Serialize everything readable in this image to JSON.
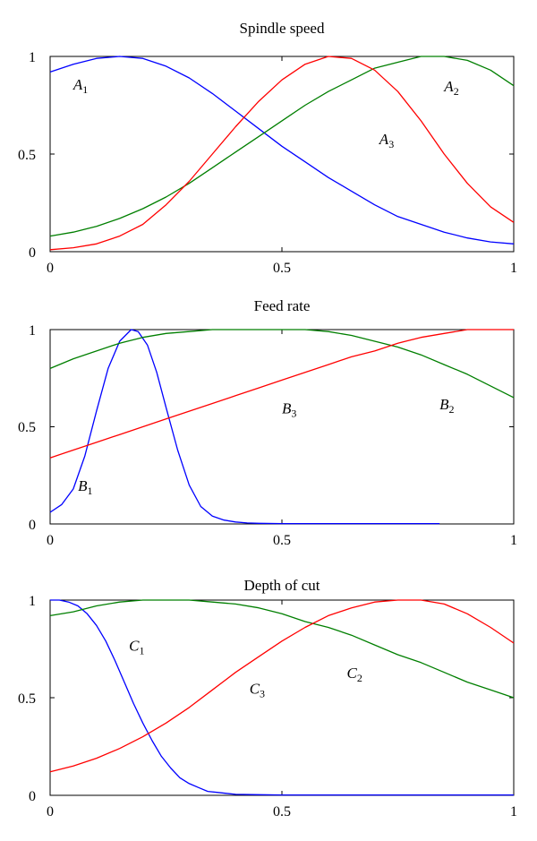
{
  "chart_data": [
    {
      "type": "line",
      "title": "Spindle speed",
      "xlim": [
        0,
        1
      ],
      "ylim": [
        0,
        1
      ],
      "xticks": [
        "0",
        "0.5",
        "1"
      ],
      "yticks": [
        "0",
        "0.5",
        "1"
      ],
      "series": [
        {
          "name": "A1",
          "letter": "A",
          "sub": "1",
          "color": "#0000ff",
          "x": [
            0,
            0.05,
            0.1,
            0.15,
            0.2,
            0.25,
            0.3,
            0.35,
            0.4,
            0.45,
            0.5,
            0.55,
            0.6,
            0.65,
            0.7,
            0.75,
            0.8,
            0.85,
            0.9,
            0.95,
            1.0
          ],
          "y": [
            0.92,
            0.96,
            0.99,
            1.0,
            0.99,
            0.95,
            0.89,
            0.81,
            0.72,
            0.63,
            0.54,
            0.46,
            0.38,
            0.31,
            0.24,
            0.18,
            0.14,
            0.1,
            0.07,
            0.05,
            0.04
          ],
          "label_at": [
            0.05,
            0.83
          ]
        },
        {
          "name": "A2",
          "letter": "A",
          "sub": "2",
          "color": "#007f00",
          "x": [
            0,
            0.05,
            0.1,
            0.15,
            0.2,
            0.25,
            0.3,
            0.35,
            0.4,
            0.45,
            0.5,
            0.55,
            0.6,
            0.65,
            0.7,
            0.75,
            0.8,
            0.85,
            0.9,
            0.95,
            1.0
          ],
          "y": [
            0.08,
            0.1,
            0.13,
            0.17,
            0.22,
            0.28,
            0.35,
            0.43,
            0.51,
            0.59,
            0.67,
            0.75,
            0.82,
            0.88,
            0.94,
            0.97,
            1.0,
            1.0,
            0.98,
            0.93,
            0.85
          ],
          "label_at": [
            0.85,
            0.82
          ]
        },
        {
          "name": "A3",
          "letter": "A",
          "sub": "3",
          "color": "#ff0000",
          "x": [
            0,
            0.05,
            0.1,
            0.15,
            0.2,
            0.25,
            0.3,
            0.35,
            0.4,
            0.45,
            0.5,
            0.55,
            0.6,
            0.65,
            0.7,
            0.75,
            0.8,
            0.85,
            0.9,
            0.95,
            1.0
          ],
          "y": [
            0.01,
            0.02,
            0.04,
            0.08,
            0.14,
            0.24,
            0.36,
            0.5,
            0.64,
            0.77,
            0.88,
            0.96,
            1.0,
            0.99,
            0.93,
            0.82,
            0.67,
            0.5,
            0.35,
            0.23,
            0.15
          ],
          "label_at": [
            0.71,
            0.55
          ]
        }
      ]
    },
    {
      "type": "line",
      "title": "Feed rate",
      "xlim": [
        0,
        1
      ],
      "ylim": [
        0,
        1
      ],
      "xticks": [
        "0",
        "0.5",
        "1"
      ],
      "yticks": [
        "0",
        "0.5",
        "1"
      ],
      "series": [
        {
          "name": "B1",
          "letter": "B",
          "sub": "1",
          "color": "#0000ff",
          "x": [
            0,
            0.025,
            0.05,
            0.075,
            0.1,
            0.125,
            0.15,
            0.175,
            0.19,
            0.21,
            0.23,
            0.25,
            0.275,
            0.3,
            0.325,
            0.35,
            0.375,
            0.4,
            0.425,
            0.45,
            0.5,
            0.6,
            0.7,
            0.8,
            0.84
          ],
          "y": [
            0.06,
            0.1,
            0.18,
            0.35,
            0.58,
            0.8,
            0.94,
            1.0,
            0.99,
            0.92,
            0.78,
            0.6,
            0.38,
            0.2,
            0.09,
            0.04,
            0.02,
            0.01,
            0.005,
            0.003,
            0.002,
            0.002,
            0.002,
            0.002,
            0.002
          ],
          "label_at": [
            0.06,
            0.17
          ]
        },
        {
          "name": "B2",
          "letter": "B",
          "sub": "2",
          "color": "#007f00",
          "x": [
            0,
            0.05,
            0.1,
            0.15,
            0.2,
            0.25,
            0.3,
            0.35,
            0.4,
            0.45,
            0.5,
            0.55,
            0.6,
            0.65,
            0.7,
            0.75,
            0.8,
            0.85,
            0.9,
            0.95,
            1.0
          ],
          "y": [
            0.8,
            0.85,
            0.89,
            0.93,
            0.96,
            0.98,
            0.99,
            1.0,
            1.0,
            1.0,
            1.0,
            1.0,
            0.99,
            0.97,
            0.94,
            0.91,
            0.87,
            0.82,
            0.77,
            0.71,
            0.65
          ],
          "label_at": [
            0.84,
            0.59
          ]
        },
        {
          "name": "B3",
          "letter": "B",
          "sub": "3",
          "color": "#ff0000",
          "x": [
            0,
            0.05,
            0.1,
            0.15,
            0.2,
            0.25,
            0.3,
            0.35,
            0.4,
            0.45,
            0.5,
            0.55,
            0.6,
            0.65,
            0.7,
            0.75,
            0.8,
            0.85,
            0.9,
            0.95,
            1.0
          ],
          "y": [
            0.34,
            0.38,
            0.42,
            0.46,
            0.5,
            0.54,
            0.58,
            0.62,
            0.66,
            0.7,
            0.74,
            0.78,
            0.82,
            0.86,
            0.89,
            0.93,
            0.96,
            0.98,
            1.0,
            1.0,
            1.0
          ],
          "label_at": [
            0.5,
            0.57
          ]
        }
      ]
    },
    {
      "type": "line",
      "title": "Depth of cut",
      "xlim": [
        0,
        1
      ],
      "ylim": [
        0,
        1
      ],
      "xticks": [
        "0",
        "0.5",
        "1"
      ],
      "yticks": [
        "0",
        "0.5",
        "1"
      ],
      "series": [
        {
          "name": "C1",
          "letter": "C",
          "sub": "1",
          "color": "#0000ff",
          "x": [
            0,
            0.02,
            0.04,
            0.06,
            0.08,
            0.1,
            0.12,
            0.14,
            0.16,
            0.18,
            0.2,
            0.22,
            0.24,
            0.26,
            0.28,
            0.3,
            0.32,
            0.34,
            0.36,
            0.38,
            0.4,
            0.45,
            0.5,
            0.6,
            0.7,
            0.8,
            0.9,
            1.0
          ],
          "y": [
            1.0,
            1.0,
            0.99,
            0.97,
            0.93,
            0.87,
            0.79,
            0.69,
            0.58,
            0.47,
            0.37,
            0.28,
            0.2,
            0.14,
            0.09,
            0.06,
            0.04,
            0.02,
            0.015,
            0.01,
            0.005,
            0.003,
            0.002,
            0.002,
            0.002,
            0.002,
            0.002,
            0.002
          ],
          "label_at": [
            0.17,
            0.74
          ]
        },
        {
          "name": "C2",
          "letter": "C",
          "sub": "2",
          "color": "#007f00",
          "x": [
            0,
            0.05,
            0.1,
            0.15,
            0.2,
            0.25,
            0.3,
            0.35,
            0.4,
            0.45,
            0.5,
            0.55,
            0.6,
            0.65,
            0.7,
            0.75,
            0.8,
            0.85,
            0.9,
            0.95,
            1.0
          ],
          "y": [
            0.92,
            0.94,
            0.97,
            0.99,
            1.0,
            1.0,
            1.0,
            0.99,
            0.98,
            0.96,
            0.93,
            0.89,
            0.86,
            0.82,
            0.77,
            0.72,
            0.68,
            0.63,
            0.58,
            0.54,
            0.5
          ],
          "label_at": [
            0.64,
            0.6
          ]
        },
        {
          "name": "C3",
          "letter": "C",
          "sub": "3",
          "color": "#ff0000",
          "x": [
            0,
            0.05,
            0.1,
            0.15,
            0.2,
            0.25,
            0.3,
            0.35,
            0.4,
            0.45,
            0.5,
            0.55,
            0.6,
            0.65,
            0.7,
            0.75,
            0.8,
            0.85,
            0.9,
            0.95,
            1.0
          ],
          "y": [
            0.12,
            0.15,
            0.19,
            0.24,
            0.3,
            0.37,
            0.45,
            0.54,
            0.63,
            0.71,
            0.79,
            0.86,
            0.92,
            0.96,
            0.99,
            1.0,
            1.0,
            0.98,
            0.93,
            0.86,
            0.78
          ],
          "label_at": [
            0.43,
            0.52
          ]
        }
      ]
    }
  ]
}
